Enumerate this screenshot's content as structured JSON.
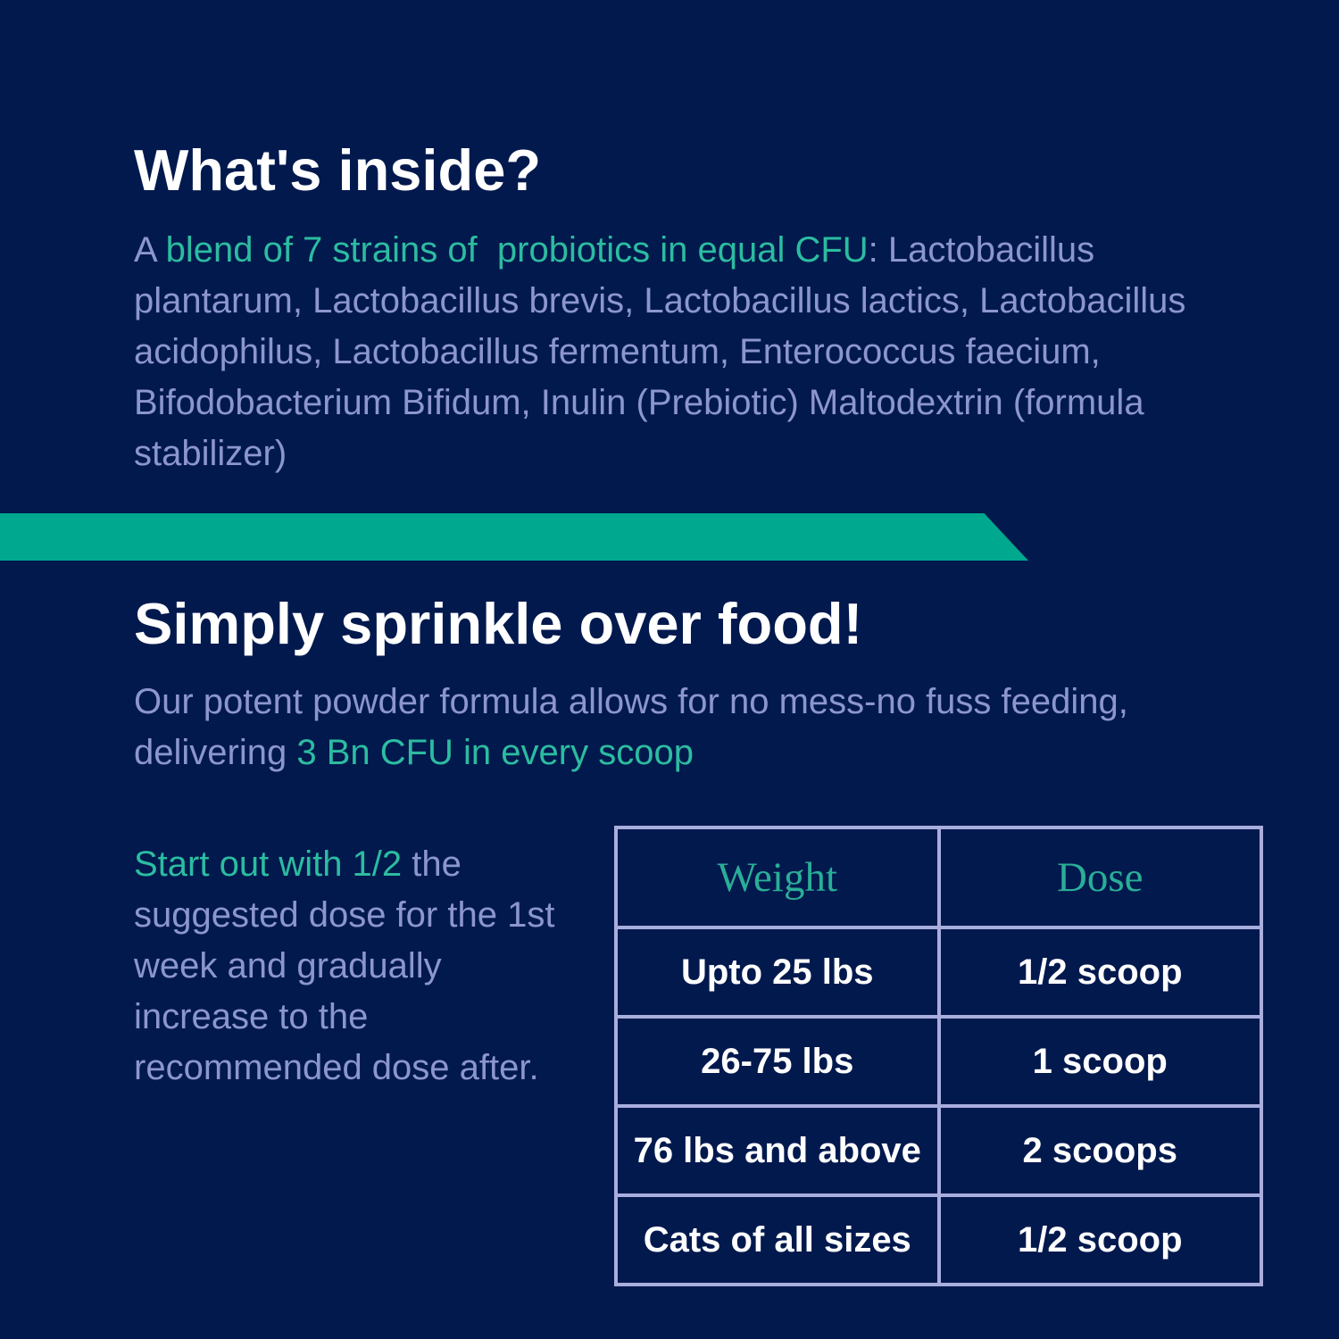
{
  "colors": {
    "background": "#02194E",
    "heading_text": "#FFFFFF",
    "body_text_lavender": "#8C96CE",
    "accent_teal_text": "#2CBCA0",
    "ribbon_teal": "#00A88F",
    "table_border_lavender": "#A8AEDD",
    "table_header_teal": "#2AAE97",
    "table_cell_text": "#FFFFFF"
  },
  "section_what_inside": {
    "title": "What's inside?",
    "prefix": "A ",
    "highlight": "blend of 7 strains of  probiotics in equal CFU",
    "separator": ": ",
    "ingredients": "Lactobacillus plantarum, Lactobacillus brevis, Lactobacillus lactics, Lactobacillus acidophilus, Lactobacillus fermentum, Enterococcus faecium, Bifodobacterium Bifidum, Inulin (Prebiotic) Maltodextrin (formula stabilizer)"
  },
  "section_sprinkle": {
    "title": "Simply sprinkle over food!",
    "body_prefix": "Our potent powder formula allows for no mess-no fuss feeding, delivering ",
    "body_highlight": "3 Bn CFU in every scoop"
  },
  "dosage_note": {
    "highlight": "Start out with 1/2",
    "rest": " the suggested dose for the 1st week and gradually increase to the recommended dose after."
  },
  "dosage_table": {
    "headers": [
      "Weight",
      "Dose"
    ],
    "rows": [
      {
        "weight": "Upto 25 lbs",
        "dose": "1/2 scoop"
      },
      {
        "weight": "26-75 lbs",
        "dose": "1 scoop"
      },
      {
        "weight": "76 lbs and above",
        "dose": "2 scoops"
      },
      {
        "weight": "Cats of all sizes",
        "dose": "1/2 scoop"
      }
    ]
  }
}
